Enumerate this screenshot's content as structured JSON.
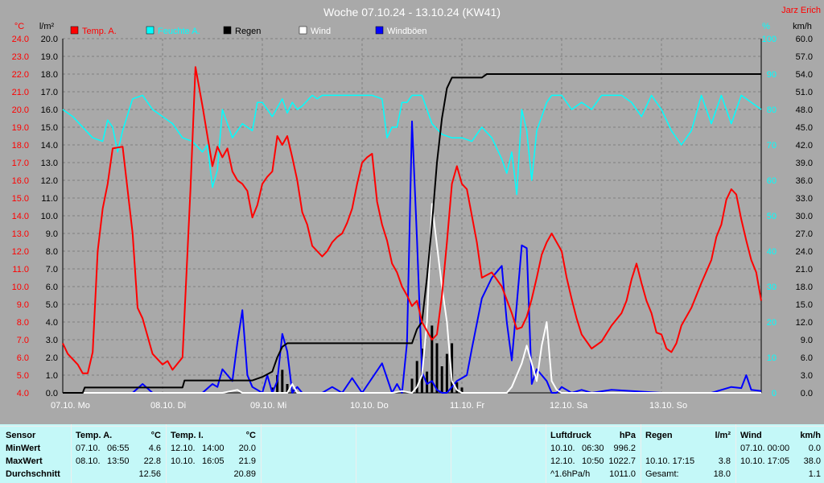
{
  "title": "Woche 07.10.24 - 13.10.24 (KW41)",
  "station": "Jarz Erich",
  "colors": {
    "bg": "#a9a9a9",
    "grid": "#808080",
    "temp": "#ff0000",
    "humidity": "#00ffff",
    "rain": "#000000",
    "wind": "#ffffff",
    "gust": "#0000ff",
    "stats_bg": "#c4f8f8"
  },
  "chart_data": {
    "type": "line",
    "grid": true,
    "legend_position": "top",
    "units": {
      "temp": "°C",
      "rain": "l/m²",
      "humidity": "%",
      "wind": "km/h"
    },
    "axes": {
      "temp": {
        "min": 4.0,
        "max": 24.0,
        "step": 1.0
      },
      "rain": {
        "min": 0.0,
        "max": 20.0,
        "step": 1.0
      },
      "humidity": {
        "min": 0,
        "max": 100,
        "step": 10
      },
      "wind": {
        "min": 0.0,
        "max": 60.0,
        "step": 5.0
      }
    },
    "x_ticks": [
      "07.10. Mo",
      "08.10. Di",
      "09.10. Mi",
      "10.10. Do",
      "11.10. Fr",
      "12.10. Sa",
      "13.10. So"
    ],
    "series": [
      {
        "name": "Temp. A.",
        "key": "temp",
        "axis": "temp",
        "type": "line",
        "t": [
          0,
          0.05,
          0.15,
          0.2,
          0.25,
          0.3,
          0.35,
          0.4,
          0.45,
          0.5,
          0.6,
          0.7,
          0.75,
          0.8,
          0.9,
          1.0,
          1.05,
          1.1,
          1.2,
          1.28,
          1.33,
          1.4,
          1.45,
          1.5,
          1.55,
          1.6,
          1.65,
          1.7,
          1.75,
          1.8,
          1.85,
          1.9,
          1.95,
          2.0,
          2.05,
          2.1,
          2.15,
          2.2,
          2.25,
          2.3,
          2.35,
          2.4,
          2.45,
          2.5,
          2.55,
          2.6,
          2.65,
          2.7,
          2.75,
          2.8,
          2.85,
          2.9,
          2.95,
          3.0,
          3.05,
          3.1,
          3.15,
          3.2,
          3.25,
          3.3,
          3.35,
          3.4,
          3.45,
          3.5,
          3.55,
          3.6,
          3.65,
          3.7,
          3.75,
          3.8,
          3.85,
          3.9,
          3.95,
          4.0,
          4.05,
          4.1,
          4.15,
          4.2,
          4.3,
          4.4,
          4.5,
          4.55,
          4.6,
          4.65,
          4.7,
          4.75,
          4.8,
          4.85,
          4.9,
          4.95,
          5.0,
          5.05,
          5.1,
          5.15,
          5.2,
          5.3,
          5.4,
          5.5,
          5.6,
          5.65,
          5.7,
          5.75,
          5.8,
          5.85,
          5.9,
          5.95,
          6.0,
          6.05,
          6.1,
          6.15,
          6.2,
          6.3,
          6.4,
          6.5,
          6.55,
          6.6,
          6.65,
          6.7,
          6.75,
          6.8,
          6.85,
          6.9,
          6.95,
          7.0
        ],
        "values": [
          6.8,
          6.2,
          5.6,
          5.1,
          5.1,
          6.3,
          12.0,
          14.4,
          15.8,
          17.8,
          17.9,
          13.0,
          8.8,
          8.2,
          6.2,
          5.6,
          5.8,
          5.3,
          6.0,
          15.5,
          22.4,
          20.2,
          18.5,
          16.8,
          17.9,
          17.3,
          17.8,
          16.5,
          16.0,
          15.8,
          15.4,
          13.9,
          14.6,
          15.8,
          16.2,
          16.5,
          18.5,
          18.0,
          18.5,
          17.3,
          16.0,
          14.2,
          13.5,
          12.3,
          12.0,
          11.7,
          12.0,
          12.5,
          12.8,
          13.0,
          13.6,
          14.4,
          15.8,
          17.0,
          17.3,
          17.5,
          14.8,
          13.5,
          12.6,
          11.3,
          10.8,
          10.0,
          9.5,
          8.9,
          9.2,
          8.0,
          7.5,
          7.0,
          7.3,
          9.5,
          12.5,
          15.8,
          16.8,
          15.8,
          15.5,
          14.0,
          12.5,
          10.5,
          10.8,
          10.0,
          8.5,
          7.6,
          7.7,
          8.3,
          9.3,
          10.5,
          11.8,
          12.5,
          13.0,
          12.5,
          12.0,
          10.5,
          9.3,
          8.2,
          7.3,
          6.5,
          6.9,
          7.8,
          8.5,
          9.2,
          10.4,
          11.3,
          10.2,
          9.2,
          8.5,
          7.4,
          7.3,
          6.5,
          6.3,
          6.8,
          7.8,
          8.8,
          10.2,
          11.5,
          12.8,
          13.5,
          14.9,
          15.5,
          15.2,
          13.8,
          12.6,
          11.5,
          10.8,
          9.2
        ]
      },
      {
        "name": "Feuchte A.",
        "key": "humidity",
        "axis": "humidity",
        "type": "line",
        "t": [
          0,
          0.1,
          0.3,
          0.4,
          0.45,
          0.5,
          0.55,
          0.6,
          0.7,
          0.8,
          0.9,
          1.0,
          1.1,
          1.2,
          1.3,
          1.4,
          1.45,
          1.5,
          1.55,
          1.6,
          1.7,
          1.8,
          1.9,
          1.95,
          2.0,
          2.1,
          2.2,
          2.25,
          2.3,
          2.35,
          2.4,
          2.5,
          2.55,
          2.6,
          2.65,
          2.7,
          2.8,
          3.0,
          3.1,
          3.2,
          3.25,
          3.3,
          3.35,
          3.4,
          3.45,
          3.5,
          3.55,
          3.6,
          3.7,
          3.8,
          3.9,
          4.0,
          4.1,
          4.2,
          4.3,
          4.4,
          4.45,
          4.5,
          4.55,
          4.6,
          4.65,
          4.7,
          4.75,
          4.8,
          4.85,
          4.9,
          4.95,
          5.0,
          5.1,
          5.2,
          5.3,
          5.4,
          5.5,
          5.6,
          5.7,
          5.8,
          5.9,
          6.0,
          6.1,
          6.2,
          6.3,
          6.4,
          6.5,
          6.6,
          6.7,
          6.8,
          6.9,
          7.0
        ],
        "values": [
          80,
          78,
          72,
          71,
          77,
          75,
          68,
          74,
          83,
          84,
          80,
          78,
          76,
          72,
          71,
          68,
          70,
          58,
          63,
          80,
          72,
          76,
          74,
          82,
          82,
          78,
          83,
          79,
          82,
          80,
          81,
          84,
          83,
          84,
          84,
          84,
          84,
          84,
          84,
          83,
          72,
          75,
          75,
          82,
          82,
          84,
          84,
          84,
          76,
          73,
          72,
          72,
          71,
          75,
          72,
          66,
          62,
          68,
          56,
          80,
          74,
          60,
          74,
          78,
          82,
          84,
          84,
          84,
          80,
          82,
          80,
          84,
          84,
          84,
          82,
          78,
          84,
          80,
          74,
          70,
          74,
          84,
          76,
          84,
          76,
          84,
          82,
          80
        ]
      },
      {
        "name": "Regen",
        "key": "rain",
        "axis": "rain",
        "type": "line",
        "t": [
          0,
          0.2,
          0.22,
          1.2,
          1.22,
          1.9,
          2.0,
          2.1,
          2.15,
          2.2,
          2.25,
          2.3,
          2.4,
          3.0,
          3.5,
          3.55,
          3.6,
          3.65,
          3.7,
          3.75,
          3.8,
          3.85,
          3.9,
          3.95,
          4.0,
          4.05,
          4.1,
          4.2,
          4.25,
          7.0
        ],
        "values": [
          0,
          0,
          0.3,
          0.3,
          0.7,
          0.7,
          0.9,
          1.2,
          2.0,
          2.6,
          2.8,
          2.8,
          2.8,
          2.8,
          2.8,
          3.6,
          4.0,
          6.5,
          9.5,
          13.0,
          15.5,
          17.2,
          17.8,
          17.8,
          17.8,
          17.8,
          17.8,
          17.8,
          18.0,
          18.0
        ]
      },
      {
        "name": "Wind",
        "key": "wind",
        "axis": "wind",
        "type": "line",
        "t": [
          0,
          1.6,
          1.75,
          1.8,
          2.25,
          2.3,
          2.35,
          2.4,
          3.3,
          3.4,
          3.5,
          3.55,
          3.6,
          3.65,
          3.7,
          3.75,
          3.8,
          3.85,
          3.9,
          3.95,
          4.0,
          4.45,
          4.5,
          4.55,
          4.6,
          4.65,
          4.7,
          4.75,
          4.8,
          4.85,
          4.9,
          4.95,
          5.0,
          7.0
        ],
        "values": [
          0,
          0,
          0.5,
          0,
          0,
          1.5,
          0,
          0,
          0,
          0.3,
          0,
          1.0,
          3.0,
          12.0,
          32.0,
          25.0,
          18.0,
          12.0,
          2.0,
          0.5,
          0,
          0,
          1.0,
          3.0,
          5.0,
          8.0,
          5.0,
          2.0,
          8.0,
          12.0,
          2.0,
          0.5,
          0,
          0
        ]
      },
      {
        "name": "Windböen",
        "key": "gust",
        "axis": "wind",
        "type": "line",
        "t": [
          0,
          0.7,
          0.8,
          0.9,
          1.0,
          1.1,
          1.2,
          1.3,
          1.4,
          1.5,
          1.55,
          1.6,
          1.65,
          1.7,
          1.75,
          1.8,
          1.85,
          1.9,
          2.0,
          2.05,
          2.1,
          2.15,
          2.2,
          2.25,
          2.3,
          2.35,
          2.4,
          2.6,
          2.7,
          2.8,
          2.9,
          3.0,
          3.2,
          3.3,
          3.35,
          3.4,
          3.45,
          3.5,
          3.55,
          3.6,
          3.65,
          3.7,
          3.75,
          3.8,
          3.85,
          3.9,
          3.95,
          4.0,
          4.05,
          4.1,
          4.2,
          4.3,
          4.4,
          4.45,
          4.5,
          4.55,
          4.6,
          4.65,
          4.7,
          4.75,
          4.8,
          4.85,
          4.9,
          4.95,
          5.0,
          5.1,
          5.2,
          5.3,
          5.5,
          6.0,
          6.5,
          6.7,
          6.8,
          6.85,
          6.9,
          7.0
        ],
        "values": [
          0,
          0,
          1.5,
          0,
          0,
          0,
          0,
          0,
          0,
          1.5,
          1.0,
          4.0,
          3.0,
          2.0,
          8.5,
          14.0,
          3.0,
          1.0,
          0,
          3.0,
          0,
          2.0,
          10.0,
          7.0,
          0,
          1.0,
          0,
          0,
          1.0,
          0,
          2.5,
          0,
          5.0,
          0,
          1.5,
          0,
          8.5,
          46.0,
          26.0,
          3.5,
          1.5,
          2.0,
          0.5,
          0,
          0,
          1.0,
          2.0,
          2.5,
          3.0,
          7.5,
          16.0,
          19.5,
          21.5,
          12.0,
          5.5,
          15.0,
          25.0,
          24.5,
          1.5,
          4.0,
          3.0,
          2.0,
          0,
          0,
          1.0,
          0,
          0.5,
          0,
          0.5,
          0,
          0,
          1.0,
          0.8,
          3.0,
          0.5,
          0.3
        ]
      }
    ],
    "rain_bars": {
      "t": [
        2.1,
        2.15,
        2.2,
        2.25,
        2.3,
        3.5,
        3.55,
        3.6,
        3.65,
        3.7,
        3.75,
        3.8,
        3.85,
        3.9,
        3.95,
        4.0
      ],
      "values": [
        0.3,
        1.0,
        1.3,
        0.5,
        0.2,
        0.8,
        1.8,
        2.5,
        1.2,
        3.8,
        2.8,
        1.5,
        2.2,
        2.8,
        0.6,
        0.3
      ]
    }
  },
  "stats": {
    "sensor": {
      "header": "Sensor",
      "rows": [
        "MinWert",
        "MaxWert",
        "Durchschnitt"
      ]
    },
    "temp_a": {
      "header": "Temp. A.",
      "unit": "°C",
      "rows": [
        [
          "07.10.",
          "06:55",
          "4.6"
        ],
        [
          "08.10.",
          "13:50",
          "22.8"
        ],
        [
          "",
          "",
          "12.56"
        ]
      ]
    },
    "temp_i": {
      "header": "Temp. I.",
      "unit": "°C",
      "rows": [
        [
          "12.10.",
          "14:00",
          "20.0"
        ],
        [
          "10.10.",
          "16:05",
          "21.9"
        ],
        [
          "",
          "",
          "20.89"
        ]
      ]
    },
    "pressure": {
      "header": "Luftdruck",
      "unit": "hPa",
      "rows": [
        [
          "10.10.",
          "06:30",
          "996.2"
        ],
        [
          "12.10.",
          "10:50",
          "1022.7"
        ],
        [
          "^1.6hPa/h",
          "",
          "1011.0"
        ]
      ]
    },
    "rain": {
      "header": "Regen",
      "unit": "l/m²",
      "rows": [
        [
          "",
          ""
        ],
        [
          "10.10.  17:15",
          "3.8"
        ],
        [
          "Gesamt:",
          "18.0"
        ]
      ]
    },
    "wind": {
      "header": "Wind",
      "unit": "km/h",
      "rows": [
        [
          "07.10.  00:00",
          "0.0"
        ],
        [
          "10.10.  17:05",
          "38.0"
        ],
        [
          "",
          "1.1"
        ]
      ]
    }
  }
}
